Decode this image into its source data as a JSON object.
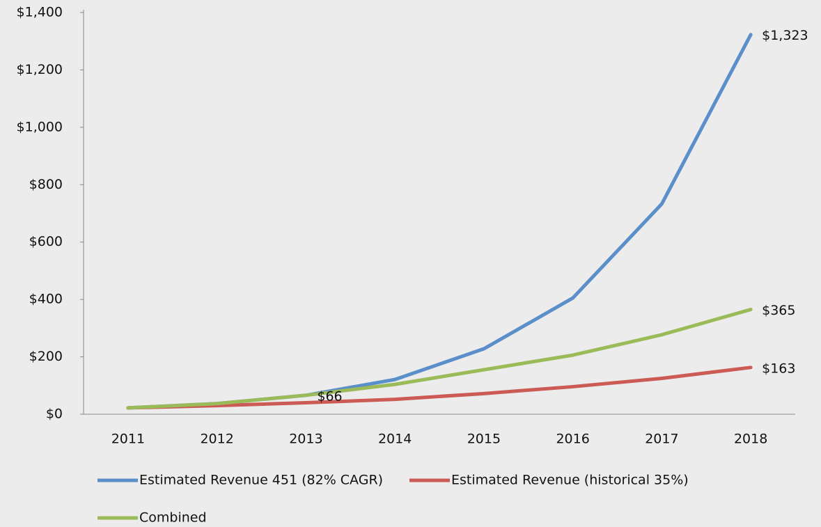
{
  "chart_data": {
    "type": "line",
    "categories": [
      "2011",
      "2012",
      "2013",
      "2014",
      "2015",
      "2016",
      "2017",
      "2018"
    ],
    "series": [
      {
        "name": "Estimated Revenue 451 (82% CAGR)",
        "color": "#5b8fc9",
        "values": [
          22,
          37,
          66,
          121,
          228,
          405,
          733,
          1323
        ],
        "value_labels": [
          null,
          null,
          null,
          null,
          null,
          null,
          null,
          "$1,323"
        ]
      },
      {
        "name": "Estimated Revenue (historical 35%)",
        "color": "#cc5a55",
        "values": [
          22,
          30,
          40,
          52,
          72,
          96,
          125,
          163
        ],
        "value_labels": [
          null,
          null,
          null,
          null,
          null,
          null,
          null,
          "$163"
        ]
      },
      {
        "name": "Combined",
        "color": "#9bbb59",
        "values": [
          22,
          37,
          66,
          104,
          155,
          206,
          277,
          365
        ],
        "value_labels": [
          null,
          null,
          "$66",
          null,
          null,
          null,
          null,
          "$365"
        ]
      }
    ],
    "ylim": [
      0,
      1400
    ],
    "yticks": [
      {
        "value": 0,
        "label": "$0"
      },
      {
        "value": 200,
        "label": "$200"
      },
      {
        "value": 400,
        "label": "$400"
      },
      {
        "value": 600,
        "label": "$600"
      },
      {
        "value": 800,
        "label": "$800"
      },
      {
        "value": 1000,
        "label": "$1,000"
      },
      {
        "value": 1200,
        "label": "$1,200"
      },
      {
        "value": 1400,
        "label": "$1,400"
      }
    ],
    "grid": false
  }
}
